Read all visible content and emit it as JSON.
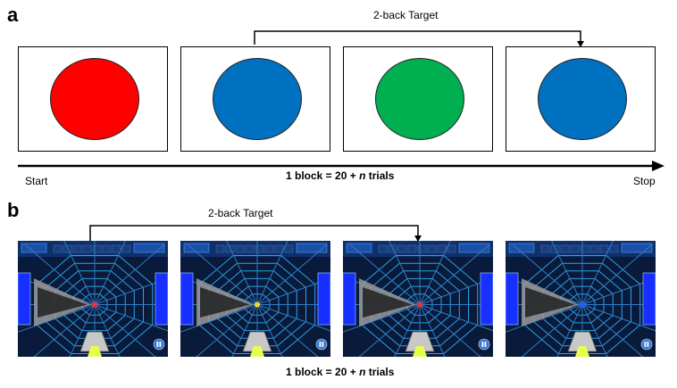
{
  "panel_a": {
    "label": "a",
    "target_label": "2-back Target",
    "start_label": "Start",
    "stop_label": "Stop",
    "block_label_prefix": "1 block = 20 + ",
    "block_label_var": "n",
    "block_label_suffix": " trials",
    "stimuli": [
      {
        "color": "#ff0000",
        "name": "red"
      },
      {
        "color": "#0070c0",
        "name": "blue"
      },
      {
        "color": "#00b050",
        "name": "green"
      },
      {
        "color": "#0070c0",
        "name": "blue"
      }
    ]
  },
  "panel_b": {
    "label": "b",
    "target_label": "2-back Target",
    "block_label_prefix": "1 block = 20 + ",
    "block_label_var": "n",
    "block_label_suffix": " trials",
    "frames": [
      {
        "center_color": "#ff2a2a"
      },
      {
        "center_color": "#ffd21a"
      },
      {
        "center_color": "#ff2a2a"
      },
      {
        "center_color": "#2a5bff"
      }
    ]
  }
}
